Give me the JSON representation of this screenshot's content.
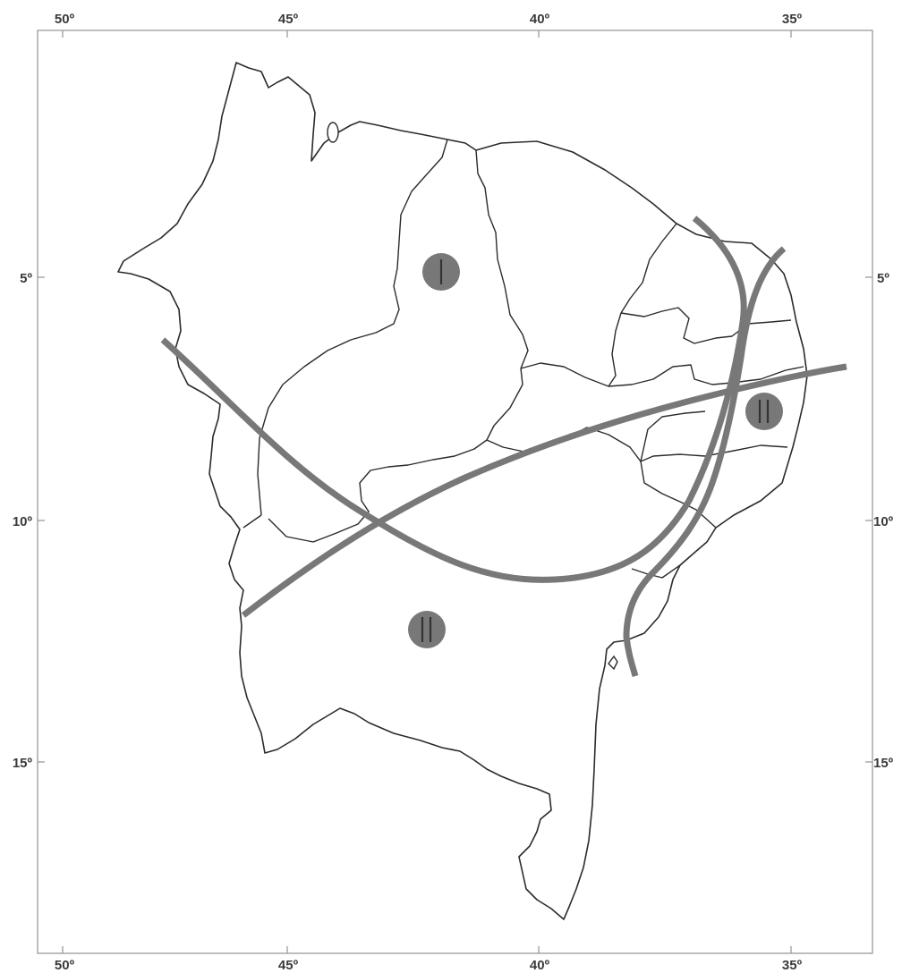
{
  "axes": {
    "top": [
      {
        "id": "lon-50",
        "label": "50º"
      },
      {
        "id": "lon-45",
        "label": "45º"
      },
      {
        "id": "lon-40",
        "label": "40º"
      },
      {
        "id": "lon-35",
        "label": "35º"
      }
    ],
    "bottom": [
      {
        "id": "lon-50",
        "label": "50º"
      },
      {
        "id": "lon-45",
        "label": "45º"
      },
      {
        "id": "lon-40",
        "label": "40º"
      },
      {
        "id": "lon-35",
        "label": "35º"
      }
    ],
    "left": [
      {
        "id": "lat-5",
        "label": "5º"
      },
      {
        "id": "lat-10",
        "label": "10º"
      },
      {
        "id": "lat-15",
        "label": "15º"
      }
    ],
    "right": [
      {
        "id": "lat-5",
        "label": "5º"
      },
      {
        "id": "lat-10",
        "label": "10º"
      },
      {
        "id": "lat-15",
        "label": "15º"
      }
    ]
  },
  "zone_markers": [
    {
      "id": "zone-i-north",
      "numeral": "I",
      "bars": 1
    },
    {
      "id": "zone-ii-east",
      "numeral": "II",
      "bars": 2
    },
    {
      "id": "zone-ii-south",
      "numeral": "II",
      "bars": 2
    }
  ],
  "colors": {
    "fault_lines": "#787878",
    "marker_fill": "#787878",
    "outline": "#2b2b2b",
    "frame": "#9a9a9a",
    "label_text": "#3a3a3a"
  }
}
